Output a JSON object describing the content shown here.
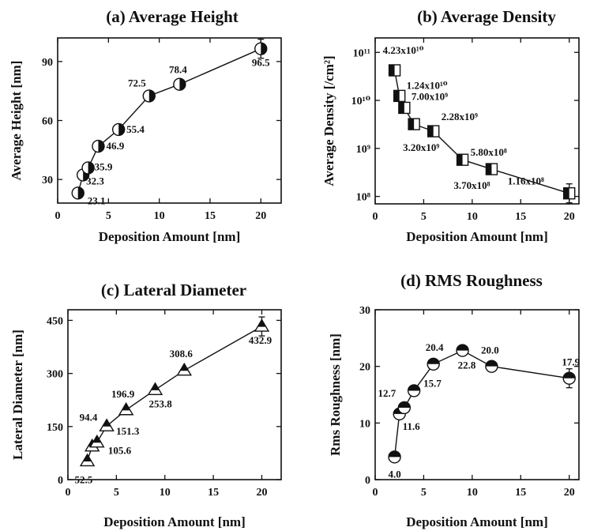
{
  "chart_data": [
    {
      "id": "a",
      "type": "scatter",
      "title": "(a) Average Height",
      "xlabel": "Deposition Amount [nm]",
      "ylabel": "Average Height [nm]",
      "xlim": [
        0,
        22
      ],
      "ylim": [
        18,
        102
      ],
      "xticks": [
        0,
        5,
        10,
        15,
        20
      ],
      "xtick_labels": [
        "0",
        "5",
        "10",
        "15",
        "20"
      ],
      "yticks": [
        30,
        60,
        90
      ],
      "ytick_labels": [
        "30",
        "60",
        "90"
      ],
      "marker": "circle-half",
      "x": [
        2,
        2.5,
        3,
        4,
        6,
        9,
        12,
        20
      ],
      "y": [
        23.1,
        32.3,
        35.9,
        46.9,
        55.4,
        72.5,
        78.4,
        96.5
      ],
      "labels": [
        "23.1",
        "32.3",
        "35.9",
        "46.9",
        "55.4",
        "72.5",
        "78.4",
        "96.5"
      ]
    },
    {
      "id": "b",
      "type": "scatter",
      "title": "(b) Average Density",
      "xlabel": "Deposition Amount [nm]",
      "ylabel": "Average Density [/cm²]",
      "xlim": [
        0,
        21
      ],
      "ylim": [
        70000000,
        200000000000
      ],
      "yscale": "log",
      "xticks": [
        0,
        5,
        10,
        15,
        20
      ],
      "xtick_labels": [
        "0",
        "5",
        "10",
        "15",
        "20"
      ],
      "yticks": [
        100000000,
        1000000000,
        10000000000,
        100000000000
      ],
      "ytick_labels": [
        "10⁸",
        "10⁹",
        "10¹⁰",
        "10¹¹"
      ],
      "marker": "square-half",
      "x": [
        2,
        2.5,
        3,
        4,
        6,
        9,
        12,
        20
      ],
      "y": [
        42300000000,
        12400000000,
        7000000000,
        3200000000,
        2280000000,
        580000000,
        370000000,
        116000000
      ],
      "labels": [
        "4.23x10¹⁰",
        "1.24x10¹⁰",
        "7.00x10⁹",
        "3.20x10⁹",
        "2.28x10⁹",
        "5.80x10⁸",
        "3.70x10⁸",
        "1.16x10⁸"
      ]
    },
    {
      "id": "c",
      "type": "scatter",
      "title": "(c) Lateral Diameter",
      "xlabel": "Deposition Amount [nm]",
      "ylabel": "Lateral Diameter [nm]",
      "xlim": [
        0,
        22
      ],
      "ylim": [
        0,
        480
      ],
      "xticks": [
        0,
        5,
        10,
        15,
        20
      ],
      "xtick_labels": [
        "0",
        "5",
        "10",
        "15",
        "20"
      ],
      "yticks": [
        0,
        150,
        300,
        450
      ],
      "ytick_labels": [
        "0",
        "150",
        "300",
        "450"
      ],
      "marker": "triangle-half",
      "x": [
        2,
        2.5,
        3,
        4,
        6,
        9,
        12,
        20
      ],
      "y": [
        52.5,
        94.4,
        105.6,
        151.3,
        196.9,
        253.8,
        308.6,
        432.9
      ],
      "labels": [
        "52.5",
        "94.4",
        "105.6",
        "151.3",
        "196.9",
        "253.8",
        "308.6",
        "432.9"
      ]
    },
    {
      "id": "d",
      "type": "scatter",
      "title": "(d) RMS Roughness",
      "xlabel": "Deposition Amount [nm]",
      "ylabel": "Rms Roughness [nm]",
      "xlim": [
        0,
        21
      ],
      "ylim": [
        0,
        30
      ],
      "xticks": [
        0,
        5,
        10,
        15,
        20
      ],
      "xtick_labels": [
        "0",
        "5",
        "10",
        "15",
        "20"
      ],
      "yticks": [
        0,
        10,
        20,
        30
      ],
      "ytick_labels": [
        "0",
        "10",
        "20",
        "30"
      ],
      "marker": "circle-half-horizontal",
      "x": [
        2,
        2.5,
        3,
        4,
        6,
        9,
        12,
        20
      ],
      "y": [
        4.0,
        11.6,
        12.7,
        15.7,
        20.4,
        22.8,
        20.0,
        17.9
      ],
      "labels": [
        "4.0",
        "11.6",
        "12.7",
        "15.7",
        "20.4",
        "22.8",
        "20.0",
        "17.9"
      ]
    }
  ]
}
